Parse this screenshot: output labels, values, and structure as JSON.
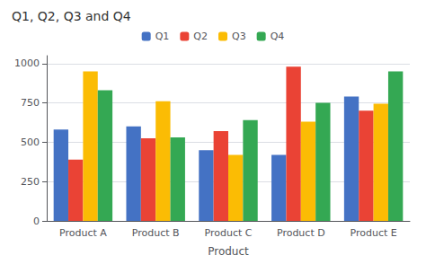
{
  "chart_data": {
    "type": "bar",
    "title": "Q1, Q2, Q3 and Q4",
    "xlabel": "Product",
    "categories": [
      "Product A",
      "Product B",
      "Product C",
      "Product D",
      "Product E"
    ],
    "series": [
      {
        "name": "Q1",
        "color": "#4472C4",
        "values": [
          580,
          600,
          450,
          420,
          790
        ]
      },
      {
        "name": "Q2",
        "color": "#EA4335",
        "values": [
          390,
          525,
          570,
          980,
          700
        ]
      },
      {
        "name": "Q3",
        "color": "#FBBC04",
        "values": [
          950,
          760,
          420,
          630,
          745
        ]
      },
      {
        "name": "Q4",
        "color": "#34A853",
        "values": [
          830,
          530,
          640,
          750,
          950
        ]
      }
    ],
    "ylim": [
      0,
      1050
    ],
    "yticks": [
      0,
      250,
      500,
      750,
      1000
    ],
    "grid": true,
    "legend": "top"
  }
}
